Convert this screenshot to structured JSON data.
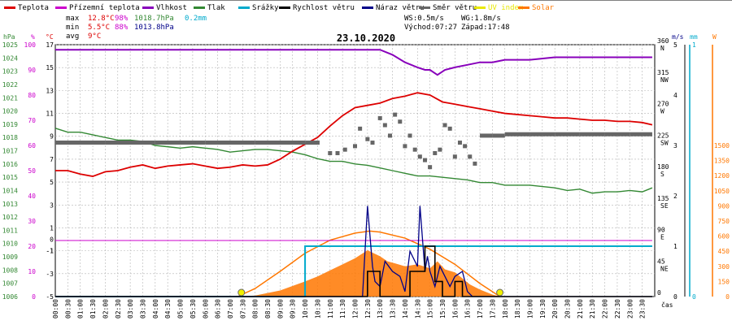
{
  "chart_data": {
    "type": "line",
    "title": "23.10.2020",
    "legend": [
      {
        "name": "Teplota",
        "color": "#dd0000"
      },
      {
        "name": "Přízemní teplota",
        "color": "#cc00cc"
      },
      {
        "name": "Vlhkost",
        "color": "#8800bb"
      },
      {
        "name": "Tlak",
        "color": "#338833"
      },
      {
        "name": "Srážky",
        "color": "#00aacc"
      },
      {
        "name": "Rychlost větru",
        "color": "#000000"
      },
      {
        "name": "Náraz větru",
        "color": "#000088"
      },
      {
        "name": "Směr větru",
        "color": "#666666"
      },
      {
        "name": "UV index",
        "color": "#e8e800"
      },
      {
        "name": "Solar",
        "color": "#ff7700"
      }
    ],
    "stats": {
      "max": {
        "label": "max",
        "temp": "12.8°C",
        "hum": "98%",
        "press": "1018.7hPa",
        "rain": "0.2mm"
      },
      "min": {
        "label": "min",
        "temp": "5.5°C",
        "hum": "88%",
        "press": "1013.8hPa"
      },
      "avg": {
        "label": "avg",
        "temp": "9°C"
      }
    },
    "wind_info": {
      "ws": "WS:0.5m/s",
      "wg": "WG:1.8m/s",
      "sunrise": "Východ:07:27",
      "sunset": "Západ:17:48"
    },
    "xlabel": "čas",
    "x_ticks": [
      "00:00",
      "00:30",
      "01:00",
      "01:30",
      "02:00",
      "02:30",
      "03:00",
      "03:30",
      "04:00",
      "04:30",
      "05:00",
      "05:30",
      "06:00",
      "06:30",
      "07:00",
      "07:30",
      "08:00",
      "08:30",
      "09:00",
      "09:30",
      "10:00",
      "10:30",
      "11:00",
      "11:30",
      "12:00",
      "12:30",
      "13:00",
      "13:30",
      "14:00",
      "14:30",
      "15:00",
      "15:30",
      "16:00",
      "16:30",
      "17:00",
      "17:30",
      "18:00",
      "18:30",
      "19:00",
      "19:30",
      "20:00",
      "20:30",
      "21:00",
      "21:30",
      "22:00",
      "22:30",
      "23:00",
      "23:30"
    ],
    "axes": {
      "pressure": {
        "unit": "hPa",
        "color": "#338833",
        "min": 1006,
        "max": 1025,
        "ticks": [
          "1025",
          "1024",
          "1023",
          "1022",
          "1021",
          "1020",
          "1019",
          "1018",
          "1017",
          "1016",
          "1015",
          "1014",
          "1013",
          "1012",
          "1011",
          "1010",
          "1009",
          "1008",
          "1007",
          "1006"
        ]
      },
      "humidity": {
        "unit": "%",
        "color": "#cc00cc",
        "min": 0,
        "max": 100,
        "ticks": [
          "100",
          "90",
          "80",
          "70",
          "60",
          "50",
          "40",
          "30",
          "20",
          "10",
          "0"
        ]
      },
      "temperature": {
        "unit": "°C",
        "color": "#dd0000",
        "min": -5,
        "max": 17,
        "ticks": [
          "17",
          "15",
          "13",
          "11",
          "9",
          "7",
          "5",
          "3",
          "1",
          "-1",
          "-3",
          "-5"
        ]
      },
      "ground_temp": {
        "color": "#cc00cc",
        "ticks": [
          "0",
          "-1"
        ]
      },
      "direction": {
        "color": "#000000",
        "min": 0,
        "max": 360,
        "ticks": [
          {
            "v": "360",
            "d": "N"
          },
          {
            "v": "315",
            "d": "NW"
          },
          {
            "v": "270",
            "d": "W"
          },
          {
            "v": "225",
            "d": "SW"
          },
          {
            "v": "180",
            "d": "S"
          },
          {
            "v": "135",
            "d": "SE"
          },
          {
            "v": "90",
            "d": "E"
          },
          {
            "v": "45",
            "d": "NE"
          },
          {
            "v": "0",
            "d": ""
          }
        ]
      },
      "wind": {
        "unit": "m/s",
        "color": "#000088",
        "min": 0,
        "max": 5,
        "ticks": [
          "5",
          "4",
          "3",
          "2",
          "1",
          "0"
        ]
      },
      "rain": {
        "unit": "mm",
        "color": "#00aacc",
        "min": 0,
        "max": 1,
        "ticks": [
          "1",
          "0"
        ]
      },
      "solar": {
        "unit": "W",
        "color": "#ff7700",
        "min": 0,
        "max": 2500,
        "ticks": [
          "1500",
          "1350",
          "1200",
          "1050",
          "900",
          "750",
          "600",
          "450",
          "300",
          "150",
          "0"
        ]
      }
    },
    "series": [
      {
        "name": "Teplota",
        "axis": "temperature",
        "x_hours": [
          0,
          0.5,
          1,
          1.5,
          2,
          2.5,
          3,
          3.5,
          4,
          4.5,
          5,
          5.5,
          6,
          6.5,
          7,
          7.5,
          8,
          8.5,
          9,
          9.5,
          10,
          10.5,
          11,
          11.5,
          12,
          12.5,
          13,
          13.5,
          14,
          14.5,
          15,
          15.5,
          16,
          16.5,
          17,
          17.5,
          18,
          18.5,
          19,
          19.5,
          20,
          20.5,
          21,
          21.5,
          22,
          22.5,
          23,
          23.5,
          23.9
        ],
        "values": [
          6.0,
          6.0,
          5.7,
          5.5,
          5.9,
          6.0,
          6.3,
          6.5,
          6.2,
          6.4,
          6.5,
          6.6,
          6.4,
          6.2,
          6.3,
          6.5,
          6.4,
          6.5,
          7.0,
          7.7,
          8.3,
          8.9,
          9.9,
          10.8,
          11.5,
          11.7,
          11.9,
          12.3,
          12.5,
          12.8,
          12.6,
          12.0,
          11.8,
          11.6,
          11.4,
          11.2,
          11.0,
          10.9,
          10.8,
          10.7,
          10.6,
          10.6,
          10.5,
          10.4,
          10.4,
          10.3,
          10.3,
          10.2,
          10.0
        ]
      },
      {
        "name": "Přízemní teplota",
        "axis": "temperature",
        "x_hours": [
          0,
          23.9
        ],
        "values": [
          -0.1,
          -0.1
        ]
      },
      {
        "name": "Vlhkost",
        "axis": "humidity",
        "x_hours": [
          0,
          1,
          2,
          3,
          4,
          5,
          6,
          7,
          8,
          9,
          10,
          11,
          12,
          13,
          13.5,
          14,
          14.5,
          14.8,
          15,
          15.3,
          15.6,
          16,
          16.5,
          17,
          17.5,
          18,
          19,
          20,
          21,
          22,
          23,
          23.9
        ],
        "values": [
          98,
          98,
          98,
          98,
          98,
          98,
          98,
          98,
          98,
          98,
          98,
          98,
          98,
          98,
          96,
          93,
          91,
          90,
          90,
          88,
          90,
          91,
          92,
          93,
          93,
          94,
          94,
          95,
          95,
          95,
          95,
          95
        ]
      },
      {
        "name": "Tlak",
        "axis": "pressure",
        "x_hours": [
          0,
          0.5,
          1,
          1.5,
          2,
          2.5,
          3,
          3.5,
          4,
          4.5,
          5,
          5.5,
          6,
          6.5,
          7,
          7.5,
          8,
          8.5,
          9,
          9.5,
          10,
          10.5,
          11,
          11.5,
          12,
          12.5,
          13,
          13.5,
          14,
          14.5,
          15,
          15.5,
          16,
          16.5,
          17,
          17.5,
          18,
          18.5,
          19,
          19.5,
          20,
          20.5,
          21,
          21.5,
          22,
          22.5,
          23,
          23.5,
          23.9
        ],
        "values": [
          1018.7,
          1018.4,
          1018.4,
          1018.2,
          1018.0,
          1017.8,
          1017.8,
          1017.7,
          1017.4,
          1017.3,
          1017.2,
          1017.3,
          1017.2,
          1017.1,
          1016.9,
          1017.0,
          1017.1,
          1017.1,
          1017.0,
          1016.9,
          1016.7,
          1016.4,
          1016.2,
          1016.2,
          1016.0,
          1015.9,
          1015.7,
          1015.5,
          1015.3,
          1015.1,
          1015.1,
          1015.0,
          1014.9,
          1014.8,
          1014.6,
          1014.6,
          1014.4,
          1014.4,
          1014.4,
          1014.3,
          1014.2,
          1014.0,
          1014.1,
          1013.8,
          1013.9,
          1013.9,
          1014.0,
          1013.9,
          1014.2
        ]
      },
      {
        "name": "Srážky",
        "axis": "rain",
        "x_hours": [
          0,
          10,
          10,
          23.9
        ],
        "values": [
          0,
          0,
          0.2,
          0.2
        ]
      },
      {
        "name": "Rychlost větru",
        "axis": "wind",
        "x_hours": [
          0,
          12.4,
          12.5,
          12.8,
          13.0,
          13.5,
          13.8,
          14.2,
          14.6,
          14.8,
          15.0,
          15.2,
          15.5,
          16.0,
          16.3,
          23.9
        ],
        "values": [
          0,
          0,
          0.5,
          0.5,
          0,
          0,
          0,
          0.5,
          0.5,
          1.0,
          1.0,
          0.3,
          0,
          0.3,
          0,
          0
        ]
      },
      {
        "name": "Náraz větru",
        "axis": "wind",
        "x_hours": [
          0,
          12.3,
          12.5,
          12.7,
          12.8,
          13.0,
          13.2,
          13.5,
          13.8,
          14.0,
          14.2,
          14.5,
          14.6,
          14.8,
          14.9,
          15.0,
          15.2,
          15.4,
          15.6,
          15.8,
          16.0,
          16.3,
          16.5,
          16.7,
          23.9
        ],
        "values": [
          0,
          0,
          1.8,
          0.6,
          0.3,
          0.2,
          0.7,
          0.5,
          0.4,
          0.1,
          0.9,
          0.6,
          1.8,
          0.5,
          0.8,
          0.5,
          0.2,
          0.6,
          0.4,
          0.2,
          0.4,
          0.5,
          0.1,
          0,
          0
        ]
      },
      {
        "name": "Směr větru",
        "axis": "direction",
        "type": "scatter",
        "x_hours": [
          0,
          2,
          4,
          6,
          8,
          10,
          10.5,
          11,
          11.3,
          11.6,
          12,
          12.2,
          12.5,
          12.7,
          13,
          13.2,
          13.4,
          13.6,
          13.8,
          14,
          14.2,
          14.4,
          14.6,
          14.8,
          15,
          15.2,
          15.4,
          15.6,
          15.8,
          16,
          16.2,
          16.4,
          16.6,
          16.8,
          17,
          17.5,
          18,
          19,
          20,
          21,
          22,
          23,
          23.9
        ],
        "values": [
          220,
          220,
          220,
          220,
          220,
          220,
          220,
          205,
          205,
          210,
          215,
          240,
          225,
          220,
          255,
          245,
          230,
          260,
          250,
          215,
          230,
          210,
          200,
          195,
          185,
          205,
          210,
          245,
          240,
          200,
          220,
          215,
          200,
          190,
          230,
          230,
          232,
          232,
          232,
          232,
          232,
          232,
          232
        ]
      },
      {
        "name": "Solar",
        "axis": "solar",
        "type": "area",
        "x_hours": [
          0,
          7.3,
          8,
          9,
          10,
          10.5,
          11,
          11.5,
          12,
          12.5,
          13,
          13.3,
          13.6,
          14,
          14.5,
          15,
          15.3,
          15.6,
          16,
          16.3,
          16.6,
          17,
          17.5,
          17.8,
          23.9
        ],
        "values": [
          0,
          0,
          10,
          60,
          150,
          200,
          260,
          320,
          380,
          460,
          400,
          350,
          330,
          300,
          320,
          280,
          350,
          270,
          240,
          180,
          120,
          70,
          20,
          0,
          0
        ]
      },
      {
        "name": "Solar max",
        "axis": "solar",
        "x_hours": [
          7.3,
          8,
          9,
          10,
          11,
          12,
          12.6,
          13,
          14,
          15,
          16,
          17,
          17.8
        ],
        "values": [
          0,
          80,
          250,
          430,
          560,
          630,
          650,
          640,
          580,
          470,
          320,
          130,
          0
        ]
      }
    ],
    "markers": [
      {
        "name": "sunrise",
        "x_hour": 7.45
      },
      {
        "name": "sunset",
        "x_hour": 17.8
      }
    ]
  }
}
